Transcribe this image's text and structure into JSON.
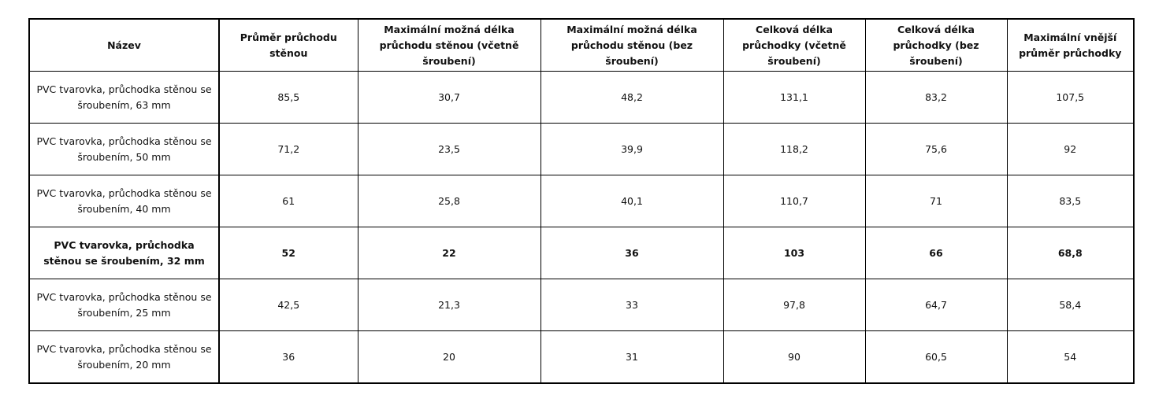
{
  "table": {
    "headers": [
      "Název",
      "Průměr průchodu stěnou",
      "Maximální možná délka průchodu stěnou (včetně šroubení)",
      "Maximální možná délka průchodu stěnou (bez šroubení)",
      "Celková délka průchodky (včetně šroubení)",
      "Celková délka průchodky (bez šroubení)",
      "Maximální vnější průměr průchodky"
    ],
    "rows": [
      {
        "name": "PVC tvarovka, průchodka stěnou se šroubením, 63 mm",
        "values": [
          "85,5",
          "30,7",
          "48,2",
          "131,1",
          "83,2",
          "107,5"
        ],
        "bold": false
      },
      {
        "name": "PVC tvarovka, průchodka stěnou se šroubením, 50 mm",
        "values": [
          "71,2",
          "23,5",
          "39,9",
          "118,2",
          "75,6",
          "92"
        ],
        "bold": false
      },
      {
        "name": "PVC tvarovka, průchodka stěnou se šroubením, 40 mm",
        "values": [
          "61",
          "25,8",
          "40,1",
          "110,7",
          "71",
          "83,5"
        ],
        "bold": false
      },
      {
        "name": "PVC tvarovka, průchodka stěnou se šroubením, 32 mm",
        "values": [
          "52",
          "22",
          "36",
          "103",
          "66",
          "68,8"
        ],
        "bold": true
      },
      {
        "name": "PVC tvarovka, průchodka stěnou se šroubením, 25 mm",
        "values": [
          "42,5",
          "21,3",
          "33",
          "97,8",
          "64,7",
          "58,4"
        ],
        "bold": false
      },
      {
        "name": "PVC tvarovka, průchodka stěnou se šroubením, 20 mm",
        "values": [
          "36",
          "20",
          "31",
          "90",
          "60,5",
          "54"
        ],
        "bold": false
      }
    ]
  }
}
